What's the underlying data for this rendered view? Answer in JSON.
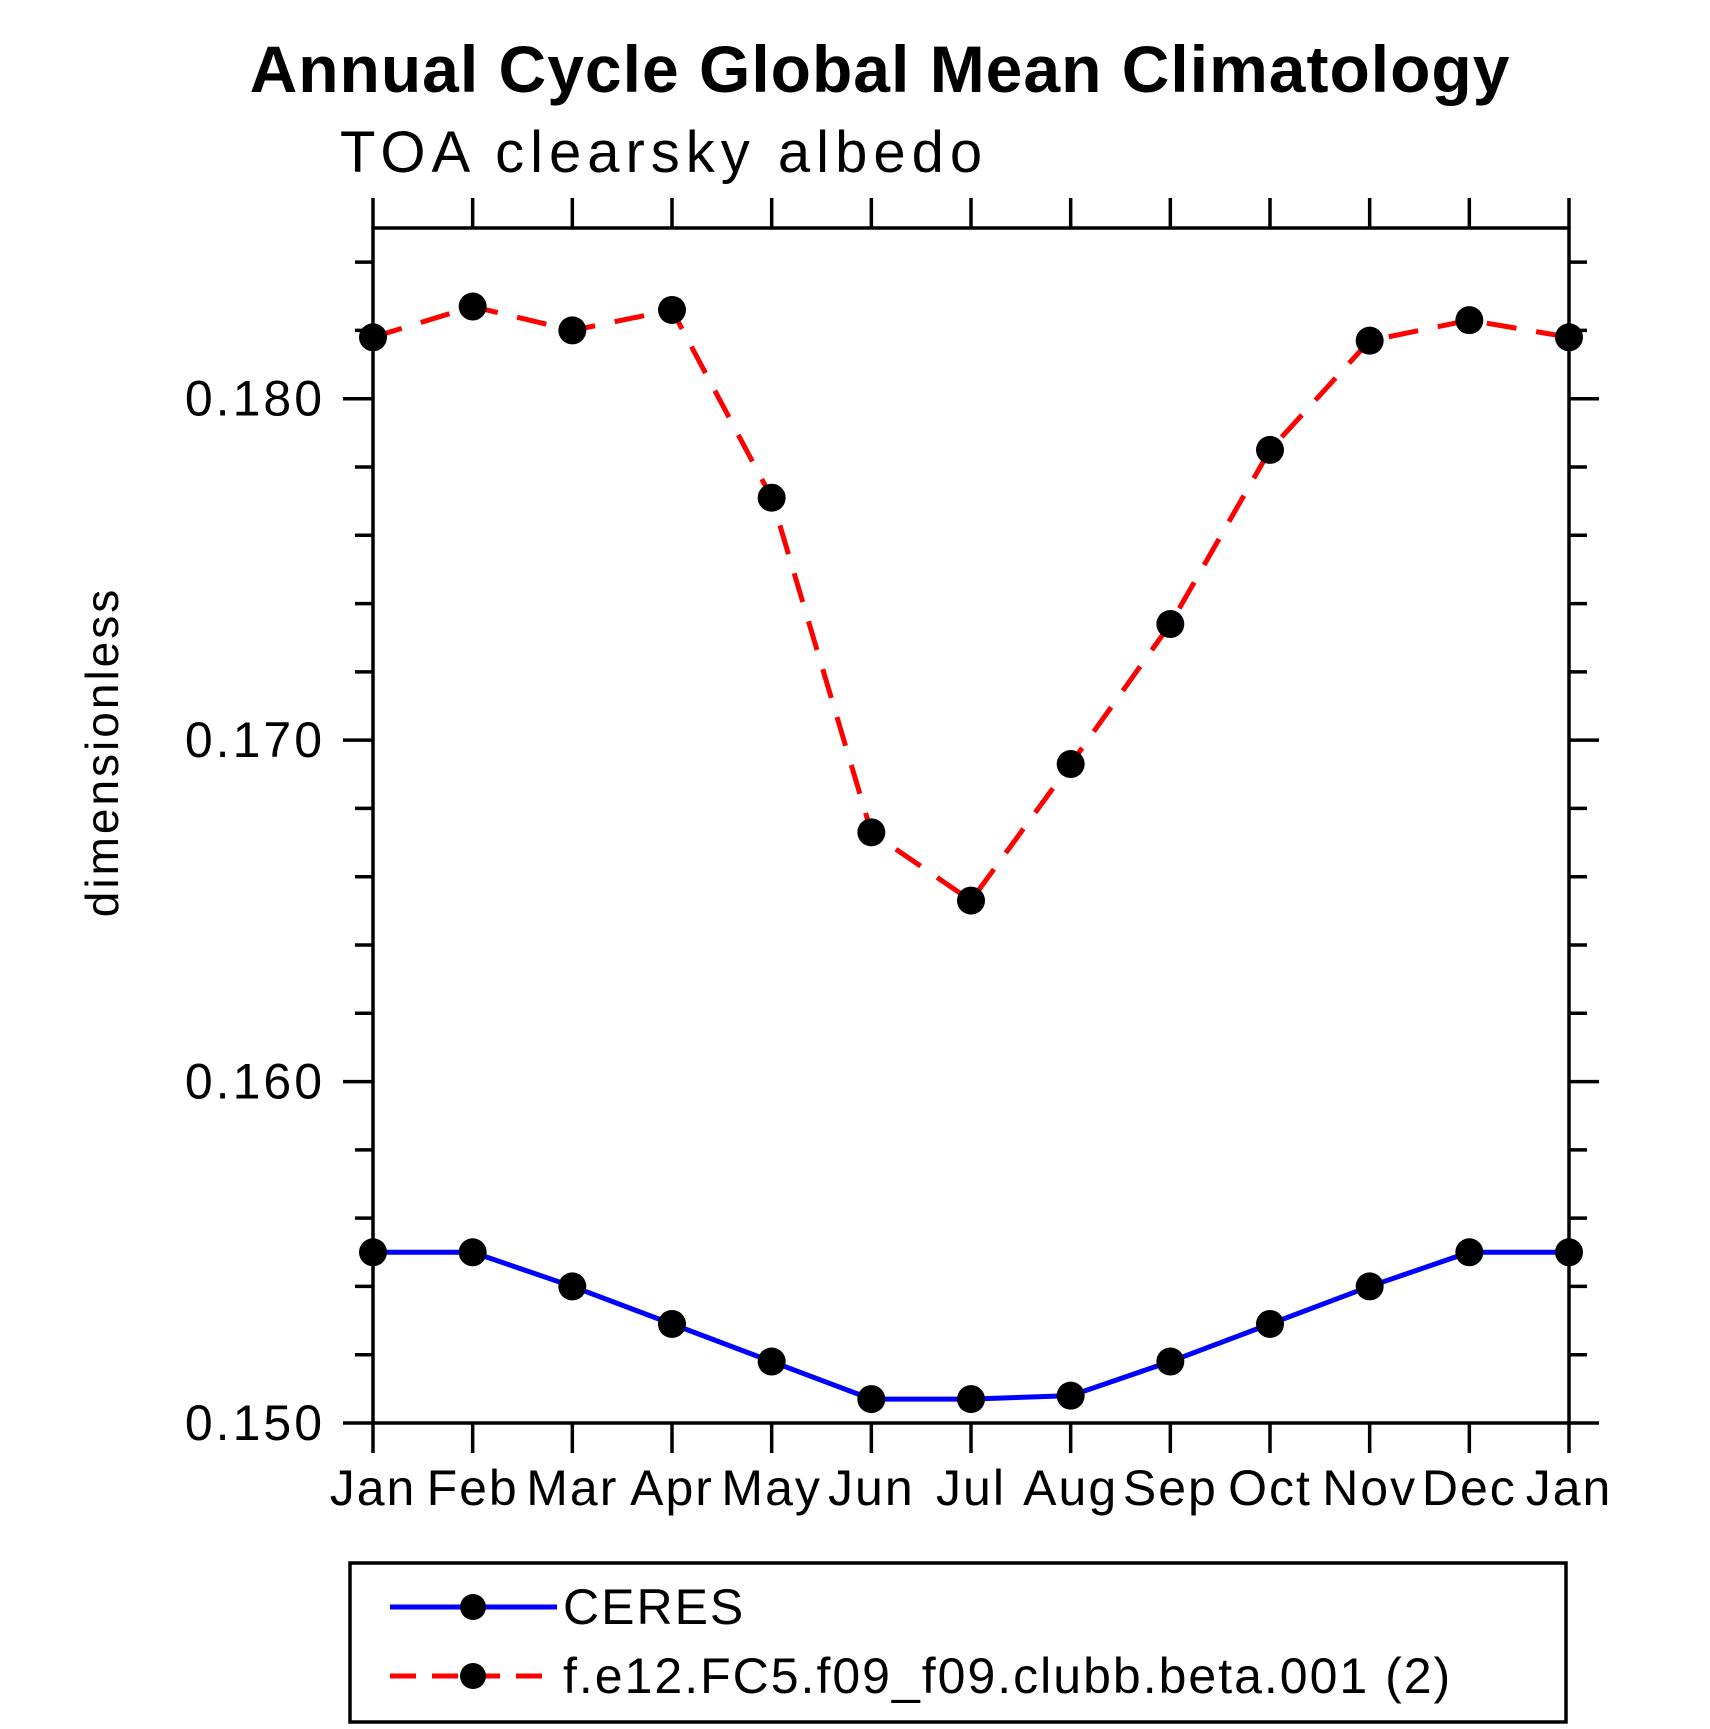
{
  "header": {
    "title": "Annual Cycle Global Mean Climatology"
  },
  "chart_data": {
    "type": "line",
    "title": "Annual Cycle Global Mean Climatology",
    "subtitle": "TOA clearsky albedo",
    "ylabel": "dimensionless",
    "xlabel": "",
    "categories": [
      "Jan",
      "Feb",
      "Mar",
      "Apr",
      "May",
      "Jun",
      "Jul",
      "Aug",
      "Sep",
      "Oct",
      "Nov",
      "Dec",
      "Jan"
    ],
    "ylim": [
      0.15,
      0.185
    ],
    "ytick_values": [
      0.15,
      0.16,
      0.17,
      0.18
    ],
    "ytick_labels": [
      "0.150",
      "0.160",
      "0.170",
      "0.180"
    ],
    "minor_tick_step": 0.002,
    "grid": false,
    "legend_position": "bottom-left",
    "marker_color": "#000000",
    "series": [
      {
        "name": "CERES",
        "color": "#0000ff",
        "style": "solid",
        "values": [
          0.155,
          0.155,
          0.154,
          0.1529,
          0.1518,
          0.1507,
          0.1507,
          0.1508,
          0.1518,
          0.1529,
          0.154,
          0.155,
          0.155
        ]
      },
      {
        "name": "f.e12.FC5.f09_f09.clubb.beta.001 (2)",
        "color": "#ff0000",
        "style": "dashed",
        "values": [
          0.1818,
          0.1827,
          0.182,
          0.1826,
          0.1771,
          0.1673,
          0.1653,
          0.1693,
          0.1734,
          0.1785,
          0.1817,
          0.1823,
          0.1818
        ]
      }
    ]
  }
}
